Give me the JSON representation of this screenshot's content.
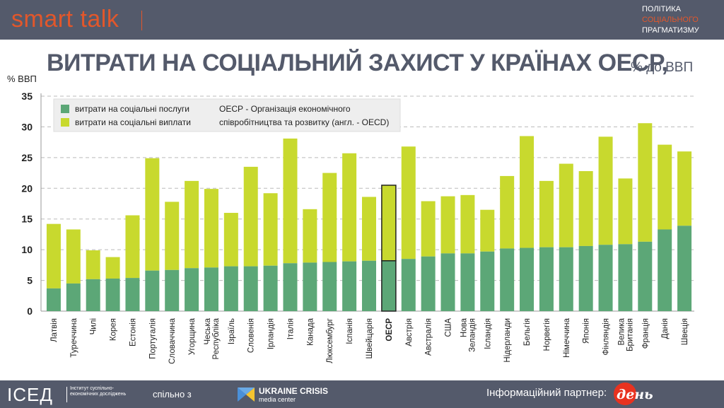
{
  "header": {
    "brand": "smart talk",
    "tagline": [
      "ПОЛІТИКА",
      "СОЦІАЛЬНОГО",
      "ПРАГМАТИЗМУ"
    ]
  },
  "title": "ВИТРАТИ НА СОЦІАЛЬНИЙ ЗАХИСТ У КРАЇНАХ ОЕСР,",
  "subtitle": "% до ВВП",
  "footer": {
    "iced_logo": "ІСЕД",
    "iced_sub": "Інститут суспільно-економічних досліджень",
    "jointly": "спільно з",
    "uc_name": "UKRAINE CRISIS",
    "uc_sub": "media center",
    "partner_label": "Інформаційний партнер:",
    "partner_logo": "день"
  },
  "colors": {
    "services": "#5ca777",
    "payments": "#c8d92e",
    "grid": "#bbbbbb",
    "bar_theme": "#545a6b",
    "accent": "#e2572b"
  },
  "chart_data": {
    "type": "bar",
    "stacked": true,
    "ylabel": "% ВВП",
    "ylim": [
      0,
      35
    ],
    "yticks": [
      0,
      5,
      10,
      15,
      20,
      25,
      30,
      35
    ],
    "grid": true,
    "legend_position": "top-left",
    "legend_note": [
      "ОЕСР - Організація економічного",
      "співробітництва та розвитку (англ. - OECD)"
    ],
    "highlight": "ОЕСР",
    "categories": [
      "Латвія",
      "Туреччина",
      "Чилі",
      "Корея",
      "Естонія",
      "Португалія",
      "Словаччина",
      "Угорщина",
      "Чеська Республіка",
      "Ізраїль",
      "Словенія",
      "Ірландія",
      "Італія",
      "Канада",
      "Люксембург",
      "Іспанія",
      "Швейцарія",
      "ОЕСР",
      "Австрія",
      "Австралія",
      "США",
      "Нова Зеландія",
      "Ісландія",
      "Нідерланди",
      "Бельгія",
      "Норвегія",
      "Німеччина",
      "Японія",
      "Фінляндія",
      "Велика Британія",
      "Франція",
      "Данія",
      "Швеція"
    ],
    "series": [
      {
        "name": "витрати на соціальні послуги",
        "values": [
          3.7,
          4.5,
          5.2,
          5.3,
          5.4,
          6.6,
          6.7,
          7.0,
          7.1,
          7.3,
          7.3,
          7.4,
          7.8,
          7.9,
          8.0,
          8.1,
          8.2,
          8.2,
          8.5,
          8.9,
          9.4,
          9.4,
          9.7,
          10.2,
          10.3,
          10.4,
          10.4,
          10.6,
          10.8,
          10.9,
          11.3,
          13.3,
          13.9
        ]
      },
      {
        "name": "витрати на соціальні виплати",
        "values": [
          10.5,
          8.8,
          4.7,
          3.5,
          10.2,
          18.3,
          11.1,
          14.2,
          12.8,
          8.7,
          16.2,
          11.8,
          20.3,
          8.7,
          14.5,
          17.6,
          10.4,
          12.3,
          18.3,
          9.0,
          9.3,
          9.5,
          6.8,
          11.8,
          18.2,
          10.8,
          13.6,
          12.2,
          17.6,
          10.7,
          19.3,
          13.8,
          12.1
        ]
      }
    ]
  }
}
